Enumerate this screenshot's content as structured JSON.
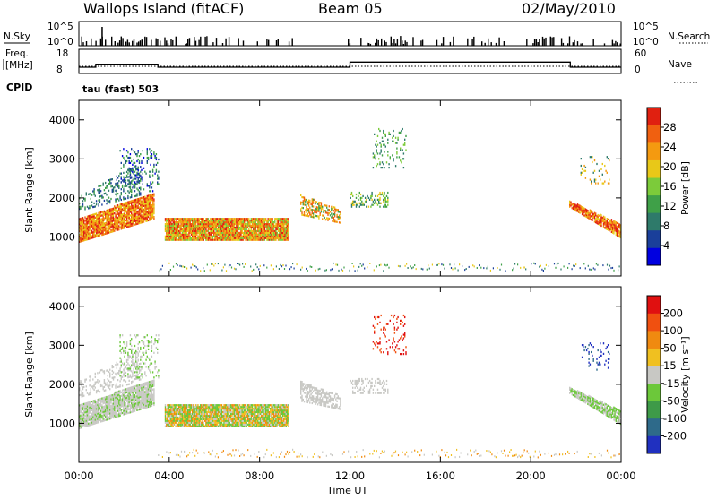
{
  "header": {
    "station": "Wallops Island (fitACF)",
    "beam": "Beam 05",
    "date": "02/May/2010"
  },
  "strips": {
    "nsky_label": "N.Sky",
    "nsearch_label": "N.Search",
    "nsky_ticks": [
      "10^5",
      "10^0"
    ],
    "nsearch_ticks": [
      "10^5",
      "10^0"
    ],
    "freq_label_line1": "Freq.",
    "freq_label_line2": "[MHz]",
    "freq_ticks": [
      "18",
      "8"
    ],
    "nave_label": "Nave",
    "nave_ticks": [
      "60",
      "0"
    ],
    "cpid_label": "CPID",
    "cpid_value": "tau (fast) 503"
  },
  "chart_data": [
    {
      "type": "heatmap",
      "panel": "power",
      "ylabel": "Slant Range [km]",
      "yticks": [
        1000,
        2000,
        3000,
        4000
      ],
      "ylim": [
        0,
        4500
      ],
      "xlim_hours": [
        0,
        24
      ],
      "colorbar": {
        "label": "Power [dB]",
        "ticks": [
          "28",
          "24",
          "20",
          "16",
          "12",
          "8",
          "4"
        ],
        "colors": [
          "#0000e0",
          "#1a3f9a",
          "#2e7a6a",
          "#3fa048",
          "#7ccb3a",
          "#e8c818",
          "#f49a10",
          "#f06010",
          "#e02010"
        ]
      }
    },
    {
      "type": "heatmap",
      "panel": "velocity",
      "ylabel": "Slant Range [km]",
      "yticks": [
        1000,
        2000,
        3000,
        4000
      ],
      "ylim": [
        0,
        4500
      ],
      "xlim_hours": [
        0,
        24
      ],
      "colorbar": {
        "label": "Velocity [m s⁻¹]",
        "ticks": [
          "200",
          "100",
          "50",
          "15",
          "-15",
          "-50",
          "-100",
          "-200"
        ],
        "colors": [
          "#2030c0",
          "#2e6a8a",
          "#3e9a48",
          "#6cc83a",
          "#c8c8c4",
          "#f0c020",
          "#f08a10",
          "#f05010",
          "#e01010"
        ]
      }
    }
  ],
  "xaxis": {
    "label": "Time UT",
    "ticks": [
      "00:00",
      "04:00",
      "08:00",
      "12:00",
      "16:00",
      "20:00",
      "00:00"
    ]
  }
}
